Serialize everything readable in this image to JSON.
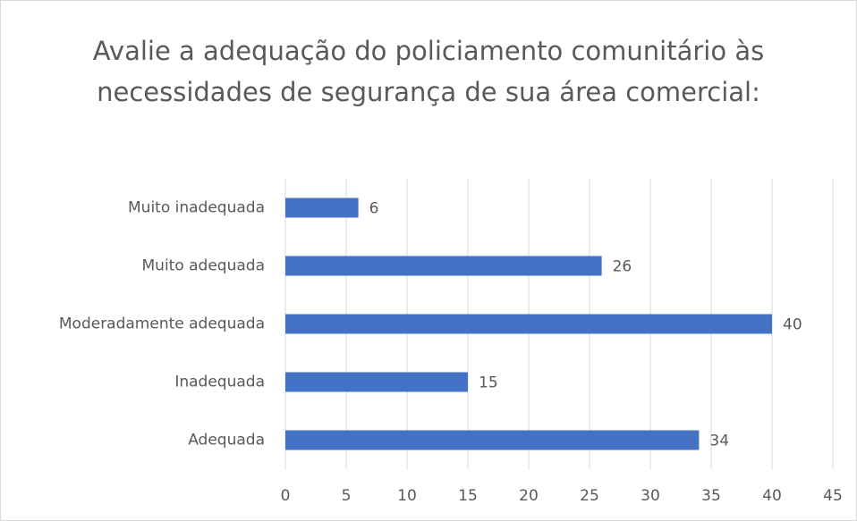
{
  "chart_data": {
    "type": "bar",
    "orientation": "horizontal",
    "title": "Avalie a adequação do policiamento comunitário às necessidades de segurança de sua área comercial:",
    "categories": [
      "Muito inadequada",
      "Muito adequada",
      "Moderadamente adequada",
      "Inadequada",
      "Adequada"
    ],
    "values": [
      6,
      26,
      40,
      15,
      34
    ],
    "color": "#4472c4",
    "xlim": [
      0,
      45
    ],
    "xticks": [
      0,
      5,
      10,
      15,
      20,
      25,
      30,
      35,
      40,
      45
    ],
    "grid": true
  }
}
